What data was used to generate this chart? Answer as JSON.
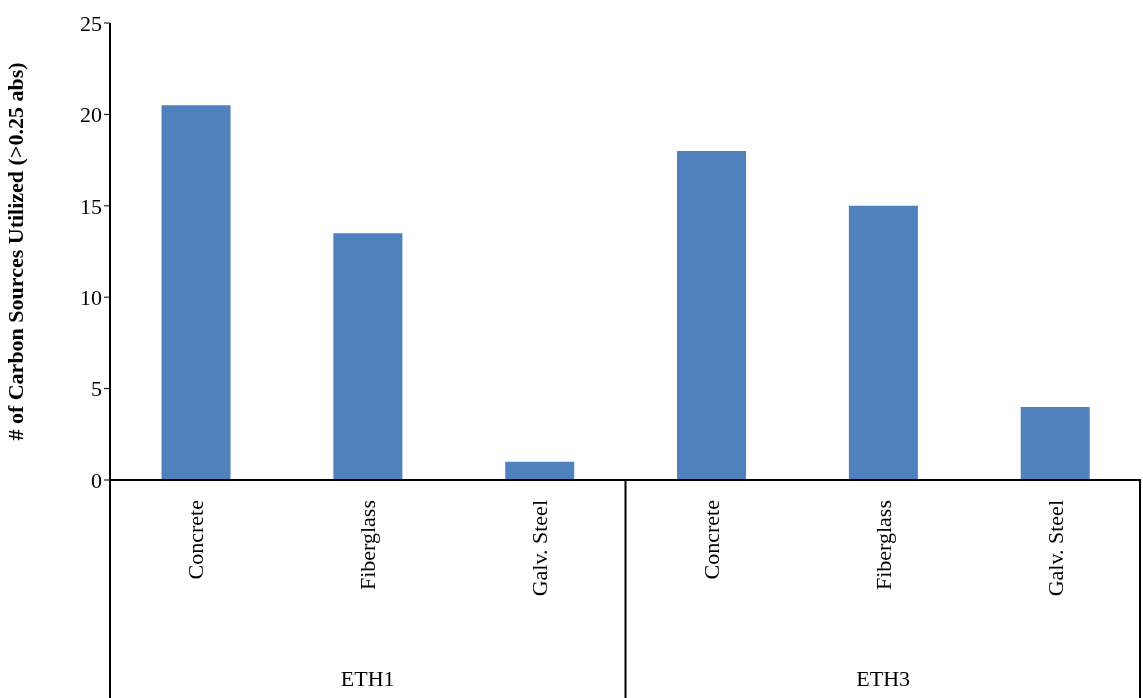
{
  "chart_data": {
    "type": "bar",
    "ylabel": "# of Carbon Sources Utilized (>0.25 abs)",
    "categories": [
      "Concrete",
      "Fiberglass",
      "Galv. Steel",
      "Concrete",
      "Fiberglass",
      "Galv. Steel"
    ],
    "values": [
      20.5,
      13.5,
      1,
      18,
      15,
      4
    ],
    "color": "#4f81bd",
    "ylim": [
      0,
      25
    ],
    "yticks": [
      0,
      5,
      10,
      15,
      20,
      25
    ],
    "grid": false,
    "legend": false,
    "annotations": [
      "ETH1",
      "ETH3"
    ]
  }
}
